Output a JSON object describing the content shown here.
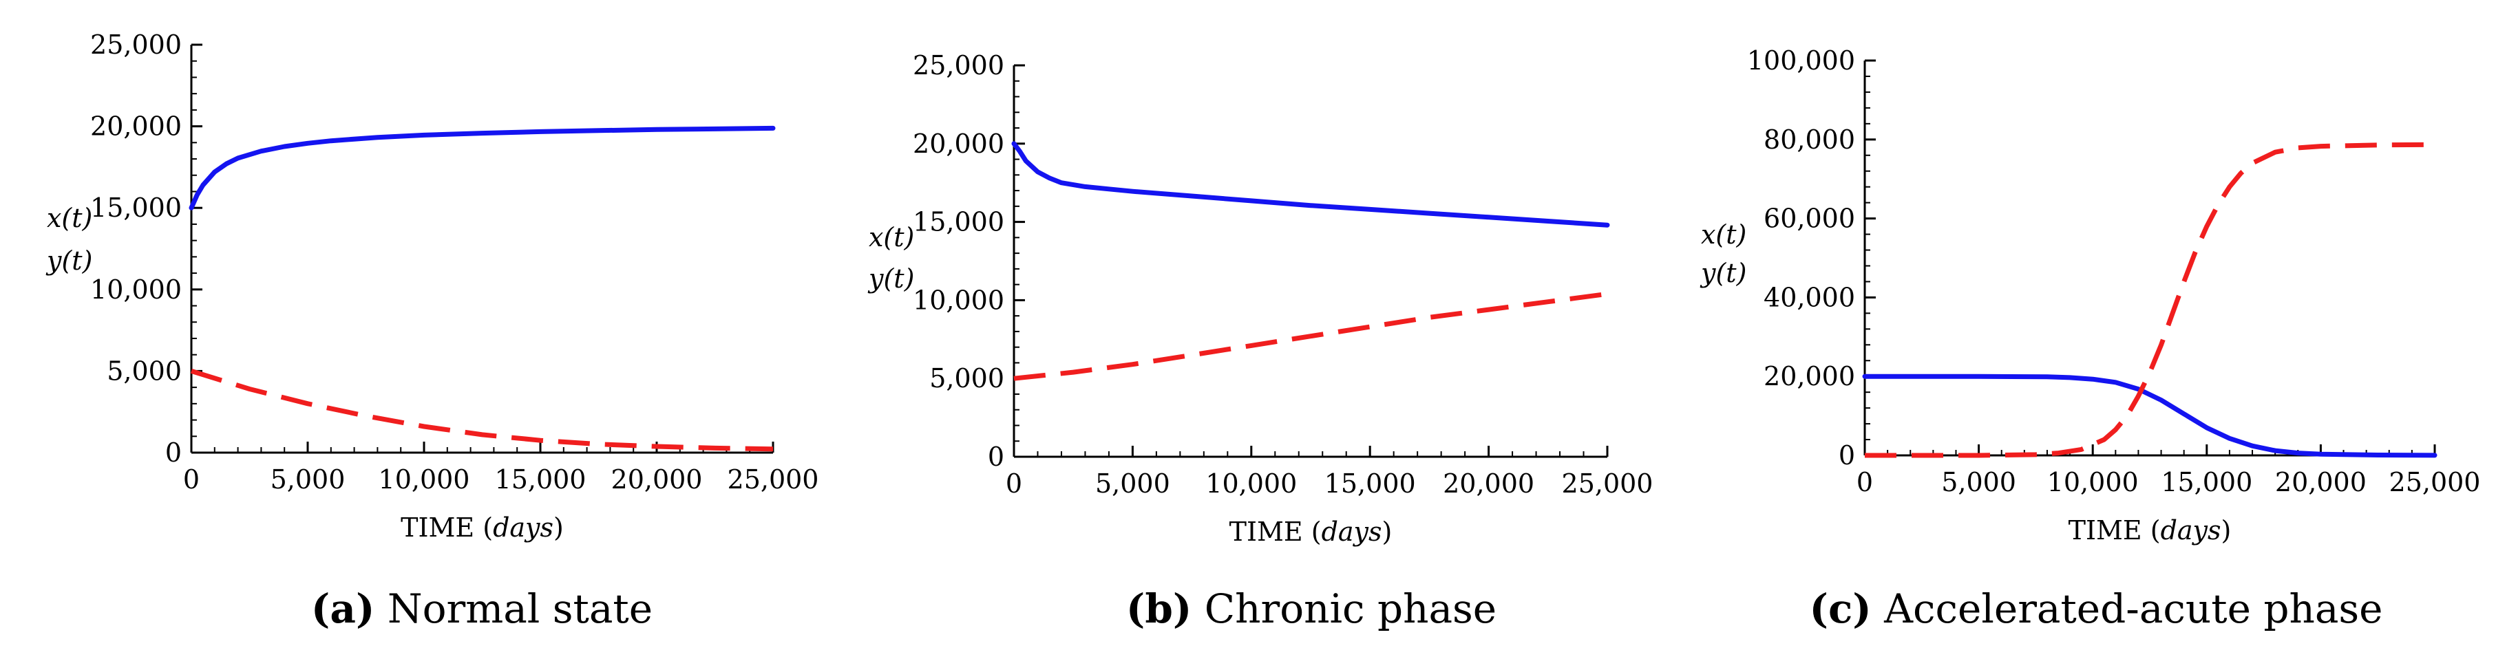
{
  "colors": {
    "x_series": "#1414f0",
    "y_series": "#f01e1e",
    "axis": "#000000"
  },
  "chart_data": [
    {
      "type": "line",
      "panel": "(a)",
      "caption_label": "(a)",
      "caption_text": "Normal state",
      "xlabel_main": "TIME",
      "xlabel_unit": "days",
      "ylabel": [
        "x(t)",
        "y(t)"
      ],
      "xlim": [
        0,
        25000
      ],
      "ylim": [
        0,
        25000
      ],
      "xticks": [
        0,
        5000,
        10000,
        15000,
        20000,
        25000
      ],
      "xtick_labels": [
        "0",
        "5,000",
        "10,000",
        "15,000",
        "20,000",
        "25,000"
      ],
      "yticks": [
        0,
        5000,
        10000,
        15000,
        20000,
        25000
      ],
      "ytick_labels": [
        "0",
        "5,000",
        "10,000",
        "15,000",
        "20,000",
        "25,000"
      ],
      "series": [
        {
          "name": "x(t)",
          "style": "solid",
          "x": [
            0,
            250,
            500,
            1000,
            1500,
            2000,
            3000,
            4000,
            5000,
            6000,
            8000,
            10000,
            12500,
            15000,
            17500,
            20000,
            22500,
            25000
          ],
          "y": [
            15000,
            15800,
            16400,
            17200,
            17700,
            18050,
            18480,
            18760,
            18960,
            19110,
            19320,
            19460,
            19580,
            19670,
            19740,
            19800,
            19840,
            19880
          ]
        },
        {
          "name": "y(t)",
          "style": "dashed",
          "x": [
            0,
            2500,
            5000,
            7500,
            10000,
            12500,
            15000,
            17500,
            20000,
            22500,
            25000
          ],
          "y": [
            5000,
            3900,
            3000,
            2250,
            1600,
            1100,
            750,
            520,
            380,
            280,
            220
          ]
        }
      ]
    },
    {
      "type": "line",
      "panel": "(b)",
      "caption_label": "(b)",
      "caption_text": "Chronic phase",
      "xlabel_main": "TIME",
      "xlabel_unit": "days",
      "ylabel": [
        "x(t)",
        "y(t)"
      ],
      "xlim": [
        0,
        25000
      ],
      "ylim": [
        0,
        25000
      ],
      "xticks": [
        0,
        5000,
        10000,
        15000,
        20000,
        25000
      ],
      "xtick_labels": [
        "0",
        "5,000",
        "10,000",
        "15,000",
        "20,000",
        "25,000"
      ],
      "yticks": [
        0,
        5000,
        10000,
        15000,
        20000,
        25000
      ],
      "ytick_labels": [
        "0",
        "5,000",
        "10,000",
        "15,000",
        "20,000",
        "25,000"
      ],
      "series": [
        {
          "name": "x(t)",
          "style": "solid",
          "x": [
            0,
            250,
            500,
            1000,
            1500,
            2000,
            3000,
            4000,
            5000,
            7500,
            10000,
            12500,
            15000,
            17500,
            20000,
            22500,
            25000
          ],
          "y": [
            20000,
            19500,
            18900,
            18200,
            17800,
            17500,
            17250,
            17100,
            16950,
            16650,
            16350,
            16050,
            15800,
            15550,
            15300,
            15050,
            14800
          ]
        },
        {
          "name": "y(t)",
          "style": "dashed",
          "x": [
            0,
            2500,
            5000,
            7500,
            10000,
            12500,
            15000,
            17500,
            20000,
            22500,
            25000
          ],
          "y": [
            5000,
            5400,
            5900,
            6500,
            7100,
            7700,
            8300,
            8900,
            9400,
            9900,
            10400
          ]
        }
      ]
    },
    {
      "type": "line",
      "panel": "(c)",
      "caption_label": "(c)",
      "caption_text": "Accelerated-acute phase",
      "xlabel_main": "TIME",
      "xlabel_unit": "days",
      "ylabel": [
        "x(t)",
        "y(t)"
      ],
      "xlim": [
        0,
        25000
      ],
      "ylim": [
        0,
        100000
      ],
      "xticks": [
        0,
        5000,
        10000,
        15000,
        20000,
        25000
      ],
      "xtick_labels": [
        "0",
        "5,000",
        "10,000",
        "15,000",
        "20,000",
        "25,000"
      ],
      "yticks": [
        0,
        20000,
        40000,
        60000,
        80000,
        100000
      ],
      "ytick_labels": [
        "0",
        "20,000",
        "40,000",
        "60,000",
        "80,000",
        "100,000"
      ],
      "series": [
        {
          "name": "x(t)",
          "style": "solid",
          "x": [
            0,
            5000,
            8000,
            9000,
            10000,
            11000,
            12000,
            13000,
            14000,
            15000,
            16000,
            17000,
            18000,
            19000,
            20000,
            22500,
            25000
          ],
          "y": [
            20000,
            20000,
            19900,
            19700,
            19300,
            18500,
            16800,
            14000,
            10500,
            7000,
            4300,
            2400,
            1200,
            600,
            300,
            80,
            20
          ]
        },
        {
          "name": "y(t)",
          "style": "dashed",
          "x": [
            0,
            5000,
            7500,
            8500,
            9500,
            10500,
            11000,
            11500,
            12000,
            12500,
            13000,
            13500,
            14000,
            14500,
            15000,
            15500,
            16000,
            16500,
            17000,
            18000,
            19000,
            20000,
            22500,
            25000
          ],
          "y": [
            0,
            0,
            200,
            600,
            1500,
            4000,
            6500,
            10000,
            15000,
            21000,
            28000,
            36000,
            44000,
            51500,
            58000,
            63500,
            68000,
            71500,
            74000,
            76800,
            77900,
            78300,
            78600,
            78700
          ]
        }
      ]
    }
  ]
}
